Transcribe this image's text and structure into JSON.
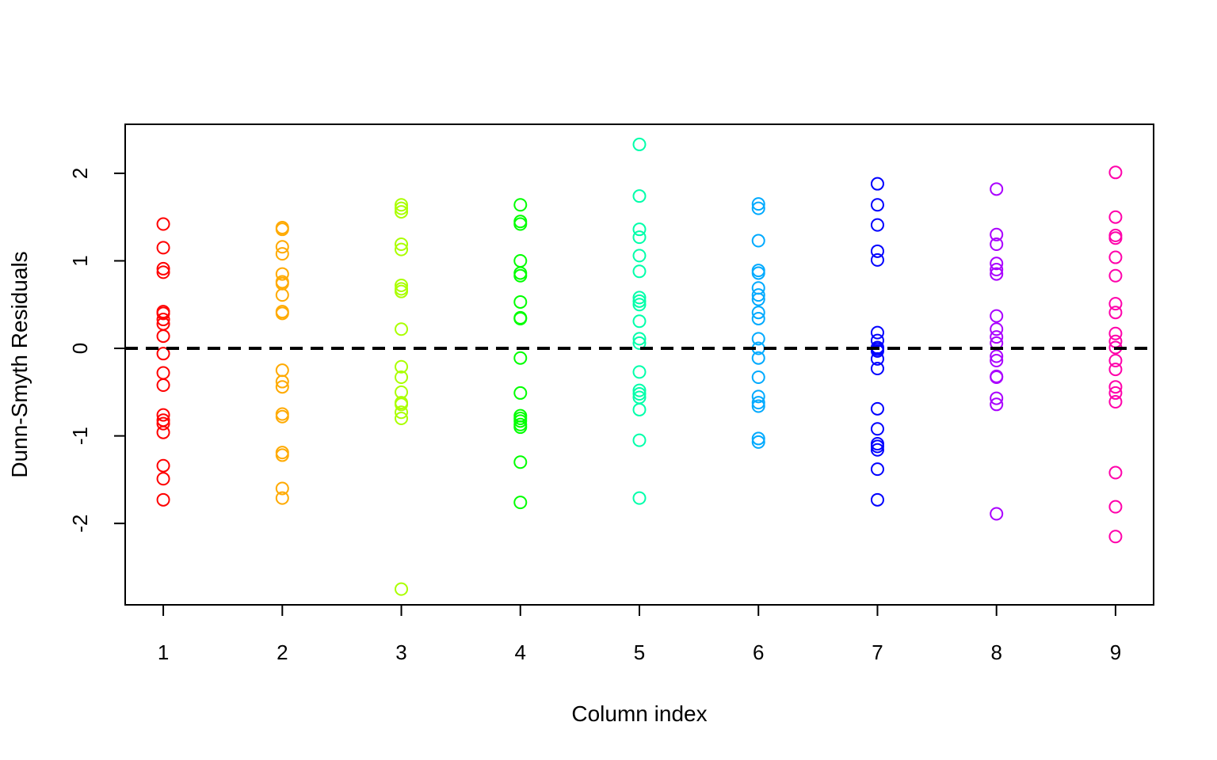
{
  "chart_data": {
    "type": "scatter",
    "title": "",
    "xlabel": "Column index",
    "ylabel": "Dunn-Smyth Residuals",
    "xlim": [
      0.68,
      9.32
    ],
    "ylim": [
      -2.93,
      2.56
    ],
    "x_ticks": [
      "1",
      "2",
      "3",
      "4",
      "5",
      "6",
      "7",
      "8",
      "9"
    ],
    "y_ticks": [
      "-2",
      "-1",
      "0",
      "1",
      "2"
    ],
    "reference_line": {
      "y": 0,
      "style": "dashed",
      "color": "#000000"
    },
    "grid": false,
    "legend": "none",
    "series": [
      {
        "x": 1,
        "color": "#FF0000",
        "values": [
          1.42,
          1.15,
          0.91,
          0.87,
          0.42,
          0.4,
          0.33,
          0.28,
          0.14,
          -0.06,
          -0.28,
          -0.42,
          -0.76,
          -0.82,
          -0.86,
          -0.96,
          -1.34,
          -1.49,
          -1.73
        ]
      },
      {
        "x": 2,
        "color": "#FFAA00",
        "values": [
          1.38,
          1.36,
          1.16,
          1.08,
          0.85,
          0.76,
          0.74,
          0.61,
          0.42,
          0.4,
          -0.25,
          -0.38,
          -0.44,
          -0.75,
          -0.78,
          -1.19,
          -1.22,
          -1.6,
          -1.71
        ]
      },
      {
        "x": 3,
        "color": "#AAFF00",
        "values": [
          1.64,
          1.6,
          1.56,
          1.19,
          1.13,
          0.72,
          0.68,
          0.65,
          0.22,
          -0.21,
          -0.33,
          -0.5,
          -0.62,
          -0.64,
          -0.73,
          -0.8,
          -2.75
        ]
      },
      {
        "x": 4,
        "color": "#00FF00",
        "values": [
          1.64,
          1.45,
          1.42,
          1.0,
          0.86,
          0.83,
          0.53,
          0.35,
          0.34,
          -0.11,
          -0.51,
          -0.77,
          -0.8,
          -0.83,
          -0.87,
          -0.9,
          -1.3,
          -1.76
        ]
      },
      {
        "x": 5,
        "color": "#00FFAA",
        "values": [
          2.33,
          1.74,
          1.36,
          1.27,
          1.06,
          0.88,
          0.58,
          0.54,
          0.5,
          0.31,
          0.11,
          0.06,
          -0.27,
          -0.48,
          -0.52,
          -0.56,
          -0.7,
          -1.05,
          -1.71
        ]
      },
      {
        "x": 6,
        "color": "#00AAFF",
        "values": [
          1.65,
          1.6,
          1.23,
          0.89,
          0.86,
          0.69,
          0.61,
          0.56,
          0.41,
          0.34,
          0.11,
          0.0,
          -0.11,
          -0.33,
          -0.55,
          -0.62,
          -0.66,
          -1.03,
          -1.07
        ]
      },
      {
        "x": 7,
        "color": "#0000FF",
        "values": [
          1.88,
          1.64,
          1.41,
          1.11,
          1.01,
          0.18,
          0.09,
          0.01,
          -0.01,
          -0.03,
          -0.12,
          -0.23,
          -0.69,
          -0.92,
          -1.09,
          -1.12,
          -1.16,
          -1.38,
          -1.73
        ]
      },
      {
        "x": 8,
        "color": "#AA00FF",
        "values": [
          1.82,
          1.3,
          1.19,
          0.97,
          0.9,
          0.85,
          0.37,
          0.22,
          0.13,
          0.06,
          -0.09,
          -0.14,
          -0.32,
          -0.33,
          -0.57,
          -0.64,
          -1.89
        ]
      },
      {
        "x": 9,
        "color": "#FF00AA",
        "values": [
          2.01,
          1.5,
          1.29,
          1.26,
          1.04,
          0.83,
          0.51,
          0.41,
          0.17,
          0.08,
          0.01,
          -0.14,
          -0.24,
          -0.44,
          -0.51,
          -0.61,
          -1.42,
          -1.81,
          -2.15
        ]
      }
    ]
  }
}
